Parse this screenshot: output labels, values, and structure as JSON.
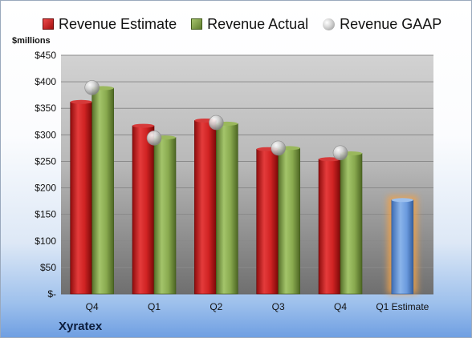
{
  "brand": "Xyratex",
  "chart_data": {
    "type": "bar",
    "title": "",
    "xlabel": "",
    "ylabel": "$millions",
    "ylim": [
      0,
      450
    ],
    "y_ticks": [
      0,
      50,
      100,
      150,
      200,
      250,
      300,
      350,
      400,
      450
    ],
    "y_tick_labels": [
      "$-",
      "$50",
      "$100",
      "$150",
      "$200",
      "$250",
      "$300",
      "$350",
      "$400",
      "$450"
    ],
    "categories": [
      "Q4",
      "Q1",
      "Q2",
      "Q3",
      "Q4",
      "Q1 Estimate"
    ],
    "grid": true,
    "legend_position": "top",
    "series": [
      {
        "name": "Revenue Estimate",
        "kind": "bar",
        "color": "#c81e1e",
        "values": [
          362,
          317,
          327,
          273,
          254,
          null
        ]
      },
      {
        "name": "Revenue Actual",
        "kind": "bar",
        "color": "#86a84a",
        "values": [
          388,
          295,
          321,
          275,
          265,
          null
        ]
      },
      {
        "name": "Revenue GAAP",
        "kind": "marker",
        "color": "#b0b0b0",
        "values": [
          389,
          294,
          323,
          275,
          266,
          null
        ]
      }
    ],
    "forecast": {
      "category": "Q1 Estimate",
      "value": 177,
      "color": "#5b8fd6",
      "glow": "#f1a24a"
    }
  }
}
